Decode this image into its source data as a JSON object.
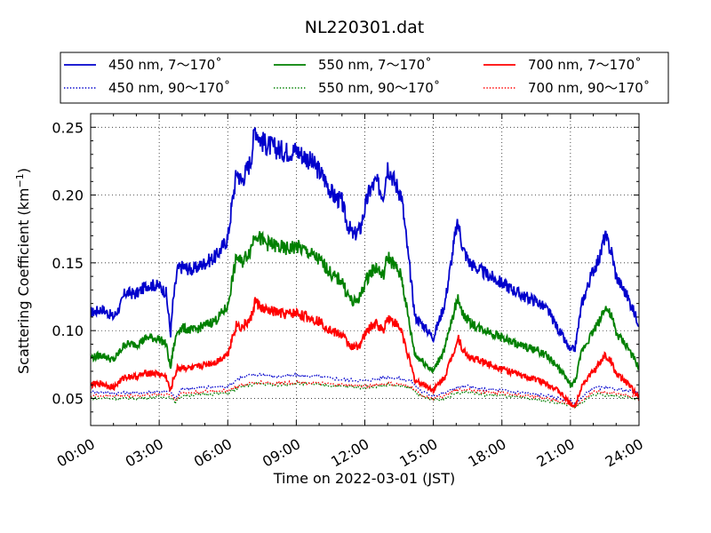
{
  "chart_data": {
    "type": "line",
    "title": "NL220301.dat",
    "xlabel": "Time on 2022-03-01 (JST)",
    "ylabel_main": "Scattering Coefficient (km",
    "ylabel_sup": "−1",
    "ylabel_close": ")",
    "xlim": [
      0,
      24
    ],
    "ylim": [
      0.03,
      0.26
    ],
    "x_ticks": [
      0,
      3,
      6,
      9,
      12,
      15,
      18,
      21,
      24
    ],
    "x_tick_labels": [
      "00:00",
      "03:00",
      "06:00",
      "09:00",
      "12:00",
      "15:00",
      "18:00",
      "21:00",
      "24:00"
    ],
    "y_ticks": [
      0.05,
      0.1,
      0.15,
      0.2,
      0.25
    ],
    "y_tick_labels": [
      "0.05",
      "0.10",
      "0.15",
      "0.20",
      "0.25"
    ],
    "grid": true,
    "legend_position": "top, above plot",
    "series": [
      {
        "name": "450 nm, 7～170˚",
        "color": "#0000cc",
        "style": "solid",
        "x": [
          0,
          0.5,
          1,
          1.3,
          1.5,
          2,
          2.5,
          3,
          3.3,
          3.5,
          3.6,
          3.8,
          4,
          4.5,
          5,
          5.5,
          6,
          6.2,
          6.4,
          6.6,
          7,
          7.2,
          7.4,
          7.6,
          8,
          8.5,
          9,
          9.5,
          10,
          10.3,
          10.6,
          11,
          11.2,
          11.5,
          11.8,
          12,
          12.2,
          12.5,
          12.8,
          13,
          13.3,
          13.6,
          14,
          14.2,
          14.5,
          15,
          15.2,
          15.5,
          16,
          16.1,
          16.3,
          16.6,
          17,
          17.5,
          18,
          18.5,
          19,
          19.5,
          20,
          20.5,
          21,
          21.2,
          21.5,
          22,
          22.3,
          22.5,
          22.8,
          23,
          23.5,
          24
        ],
        "values": [
          0.113,
          0.116,
          0.11,
          0.118,
          0.128,
          0.127,
          0.134,
          0.133,
          0.128,
          0.098,
          0.12,
          0.145,
          0.147,
          0.145,
          0.15,
          0.155,
          0.168,
          0.195,
          0.218,
          0.21,
          0.225,
          0.25,
          0.242,
          0.238,
          0.235,
          0.232,
          0.233,
          0.227,
          0.218,
          0.21,
          0.2,
          0.195,
          0.18,
          0.17,
          0.175,
          0.19,
          0.203,
          0.21,
          0.2,
          0.222,
          0.21,
          0.2,
          0.14,
          0.11,
          0.105,
          0.095,
          0.105,
          0.12,
          0.175,
          0.178,
          0.16,
          0.15,
          0.145,
          0.14,
          0.135,
          0.13,
          0.125,
          0.122,
          0.115,
          0.1,
          0.085,
          0.087,
          0.12,
          0.145,
          0.155,
          0.17,
          0.158,
          0.14,
          0.125,
          0.105
        ]
      },
      {
        "name": "450 nm, 90～170˚",
        "color": "#0000cc",
        "style": "dotted",
        "x": [
          0,
          1,
          2,
          3,
          3.5,
          3.7,
          4,
          5,
          6,
          6.5,
          7,
          7.5,
          8,
          9,
          10,
          11,
          12,
          13,
          14,
          14.5,
          15,
          15.5,
          16,
          16.5,
          17,
          18,
          19,
          20,
          21,
          21.2,
          22,
          23,
          24
        ],
        "values": [
          0.055,
          0.054,
          0.054,
          0.055,
          0.055,
          0.05,
          0.057,
          0.058,
          0.059,
          0.065,
          0.067,
          0.068,
          0.066,
          0.067,
          0.066,
          0.064,
          0.063,
          0.066,
          0.063,
          0.055,
          0.052,
          0.054,
          0.058,
          0.059,
          0.057,
          0.056,
          0.054,
          0.052,
          0.048,
          0.046,
          0.058,
          0.057,
          0.054
        ]
      },
      {
        "name": "550 nm, 7～170˚",
        "color": "#008000",
        "style": "solid",
        "x": [
          0,
          0.5,
          1,
          1.3,
          1.5,
          2,
          2.5,
          3,
          3.3,
          3.5,
          3.6,
          3.8,
          4,
          4.5,
          5,
          5.5,
          6,
          6.2,
          6.4,
          6.6,
          7,
          7.2,
          7.4,
          7.6,
          8,
          8.5,
          9,
          9.5,
          10,
          10.3,
          10.6,
          11,
          11.2,
          11.5,
          11.8,
          12,
          12.2,
          12.5,
          12.8,
          13,
          13.3,
          13.6,
          14,
          14.2,
          14.5,
          15,
          15.2,
          15.5,
          16,
          16.1,
          16.3,
          16.6,
          17,
          17.5,
          18,
          18.5,
          19,
          19.5,
          20,
          20.5,
          21,
          21.2,
          21.5,
          22,
          22.3,
          22.5,
          22.8,
          23,
          23.5,
          24
        ],
        "values": [
          0.08,
          0.082,
          0.078,
          0.085,
          0.09,
          0.09,
          0.095,
          0.094,
          0.09,
          0.072,
          0.085,
          0.1,
          0.102,
          0.1,
          0.104,
          0.108,
          0.118,
          0.138,
          0.155,
          0.15,
          0.16,
          0.173,
          0.168,
          0.165,
          0.163,
          0.16,
          0.162,
          0.158,
          0.152,
          0.147,
          0.14,
          0.137,
          0.128,
          0.12,
          0.125,
          0.135,
          0.142,
          0.147,
          0.14,
          0.155,
          0.148,
          0.14,
          0.1,
          0.082,
          0.078,
          0.07,
          0.077,
          0.087,
          0.12,
          0.124,
          0.112,
          0.106,
          0.102,
          0.099,
          0.095,
          0.091,
          0.088,
          0.086,
          0.081,
          0.072,
          0.06,
          0.062,
          0.085,
          0.1,
          0.108,
          0.118,
          0.11,
          0.098,
          0.088,
          0.072
        ]
      },
      {
        "name": "550 nm, 90～170˚",
        "color": "#008000",
        "style": "dotted",
        "x": [
          0,
          1,
          2,
          3,
          3.5,
          3.7,
          4,
          5,
          6,
          6.5,
          7,
          7.5,
          8,
          9,
          10,
          11,
          12,
          13,
          14,
          14.5,
          15,
          15.5,
          16,
          16.5,
          17,
          18,
          19,
          20,
          21,
          21.2,
          22,
          23,
          24
        ],
        "values": [
          0.05,
          0.05,
          0.05,
          0.051,
          0.051,
          0.047,
          0.052,
          0.053,
          0.054,
          0.058,
          0.06,
          0.061,
          0.06,
          0.061,
          0.06,
          0.059,
          0.058,
          0.06,
          0.058,
          0.051,
          0.049,
          0.05,
          0.054,
          0.055,
          0.053,
          0.052,
          0.05,
          0.048,
          0.045,
          0.043,
          0.053,
          0.052,
          0.049
        ]
      },
      {
        "name": "700 nm, 7～170˚",
        "color": "#ff0000",
        "style": "solid",
        "x": [
          0,
          0.5,
          1,
          1.3,
          1.5,
          2,
          2.5,
          3,
          3.3,
          3.5,
          3.6,
          3.8,
          4,
          4.5,
          5,
          5.5,
          6,
          6.2,
          6.4,
          6.6,
          7,
          7.2,
          7.4,
          7.6,
          8,
          8.5,
          9,
          9.5,
          10,
          10.3,
          10.6,
          11,
          11.2,
          11.5,
          11.8,
          12,
          12.2,
          12.5,
          12.8,
          13,
          13.3,
          13.6,
          14,
          14.2,
          14.5,
          15,
          15.2,
          15.5,
          16,
          16.1,
          16.3,
          16.6,
          17,
          17.5,
          18,
          18.5,
          19,
          19.5,
          20,
          20.5,
          21,
          21.2,
          21.5,
          22,
          22.3,
          22.5,
          22.8,
          23,
          23.5,
          24
        ],
        "values": [
          0.06,
          0.061,
          0.058,
          0.063,
          0.066,
          0.066,
          0.069,
          0.068,
          0.066,
          0.055,
          0.063,
          0.072,
          0.073,
          0.072,
          0.075,
          0.077,
          0.083,
          0.095,
          0.105,
          0.102,
          0.108,
          0.122,
          0.118,
          0.115,
          0.114,
          0.112,
          0.113,
          0.11,
          0.107,
          0.103,
          0.099,
          0.097,
          0.092,
          0.087,
          0.09,
          0.097,
          0.102,
          0.105,
          0.1,
          0.11,
          0.106,
          0.1,
          0.075,
          0.063,
          0.061,
          0.056,
          0.06,
          0.066,
          0.09,
          0.095,
          0.085,
          0.08,
          0.078,
          0.075,
          0.072,
          0.069,
          0.066,
          0.064,
          0.061,
          0.055,
          0.046,
          0.044,
          0.06,
          0.07,
          0.076,
          0.082,
          0.077,
          0.068,
          0.061,
          0.051
        ]
      },
      {
        "name": "700 nm, 90～170˚",
        "color": "#ff0000",
        "style": "dotted",
        "x": [
          0,
          1,
          2,
          3,
          3.5,
          3.7,
          4,
          5,
          6,
          6.5,
          7,
          7.5,
          8,
          9,
          10,
          11,
          12,
          13,
          14,
          14.5,
          15,
          15.5,
          16,
          16.5,
          17,
          18,
          19,
          20,
          21,
          21.2,
          22,
          23,
          24
        ],
        "values": [
          0.052,
          0.052,
          0.052,
          0.053,
          0.053,
          0.049,
          0.054,
          0.055,
          0.056,
          0.059,
          0.061,
          0.062,
          0.061,
          0.062,
          0.061,
          0.06,
          0.059,
          0.061,
          0.059,
          0.052,
          0.05,
          0.052,
          0.056,
          0.057,
          0.055,
          0.054,
          0.052,
          0.05,
          0.046,
          0.044,
          0.055,
          0.054,
          0.051
        ]
      }
    ]
  }
}
